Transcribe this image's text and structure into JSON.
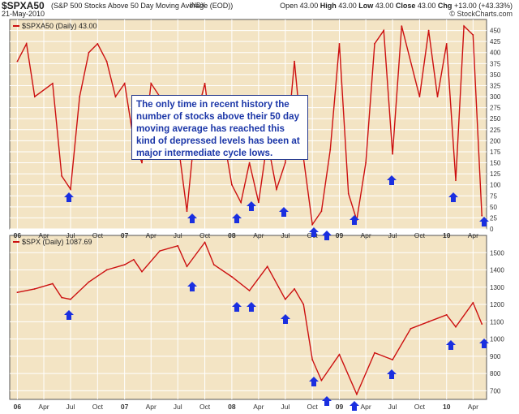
{
  "header": {
    "symbol": "$SPXA50",
    "description": "(S&P 500 Stocks Above 50 Day Moving Average (EOD))",
    "exchange": "INDX",
    "date": "21-May-2010",
    "open_label": "Open",
    "open": "43.00",
    "high_label": "High",
    "high": "43.00",
    "low_label": "Low",
    "low": "43.00",
    "close_label": "Close",
    "close": "43.00",
    "chg_label": "Chg",
    "chg": "+13.00 (+43.33%)",
    "credit": "© StockCharts.com"
  },
  "colors": {
    "plot_bg": "#f3e4c4",
    "line": "#cc1010",
    "arrow": "#1a2fe0",
    "grid": "#ffffff",
    "annotation_text": "#1c37a8"
  },
  "annotation": "The only time in recent history the number of stocks above their 50 day moving average has reached this kind of depressed levels has been at major intermediate cycle lows.",
  "x_axis_labels": [
    "06",
    "Apr",
    "Jul",
    "Oct",
    "07",
    "Apr",
    "Jul",
    "Oct",
    "08",
    "Apr",
    "Jul",
    "Oct",
    "09",
    "Apr",
    "Jul",
    "Oct",
    "10",
    "Apr"
  ],
  "chart_data": [
    {
      "type": "line",
      "legend": "$SPXA50 (Daily) 43.00",
      "ylim": [
        0,
        475
      ],
      "y_ticks": [
        0,
        25,
        50,
        75,
        100,
        125,
        150,
        175,
        200,
        225,
        250,
        275,
        300,
        325,
        350,
        375,
        400,
        425,
        450
      ],
      "grid": true,
      "series": [
        {
          "name": "$SPXA50",
          "x": [
            "2006-01",
            "2006-02",
            "2006-03",
            "2006-05",
            "2006-06",
            "2006-07",
            "2006-08",
            "2006-09",
            "2006-10",
            "2006-11",
            "2006-12",
            "2007-01",
            "2007-02",
            "2007-03",
            "2007-04",
            "2007-05",
            "2007-06",
            "2007-07",
            "2007-08",
            "2007-09",
            "2007-10",
            "2007-11",
            "2007-12",
            "2008-01",
            "2008-02",
            "2008-03",
            "2008-04",
            "2008-05",
            "2008-06",
            "2008-07",
            "2008-08",
            "2008-09",
            "2008-10",
            "2008-11",
            "2008-12",
            "2009-01",
            "2009-02",
            "2009-03",
            "2009-04",
            "2009-05",
            "2009-06",
            "2009-07",
            "2009-08",
            "2009-10",
            "2009-11",
            "2009-12",
            "2010-01",
            "2010-02",
            "2010-03",
            "2010-04",
            "2010-05"
          ],
          "values": [
            380,
            420,
            300,
            330,
            120,
            90,
            300,
            400,
            420,
            380,
            300,
            330,
            200,
            150,
            330,
            300,
            200,
            200,
            40,
            250,
            330,
            170,
            220,
            100,
            60,
            150,
            60,
            200,
            90,
            150,
            380,
            160,
            10,
            40,
            180,
            420,
            80,
            20,
            150,
            420,
            450,
            170,
            460,
            300,
            450,
            300,
            420,
            110,
            460,
            440,
            30
          ]
        }
      ]
    },
    {
      "type": "line",
      "legend": "$SPX (Daily) 1087.69",
      "ylim": [
        650,
        1600
      ],
      "y_ticks": [
        700,
        800,
        900,
        1000,
        1100,
        1200,
        1300,
        1400,
        1500
      ],
      "grid": true,
      "series": [
        {
          "name": "$SPX",
          "x": [
            "2006-01",
            "2006-03",
            "2006-05",
            "2006-06",
            "2006-07",
            "2006-09",
            "2006-11",
            "2007-01",
            "2007-02",
            "2007-03",
            "2007-05",
            "2007-07",
            "2007-08",
            "2007-10",
            "2007-11",
            "2008-01",
            "2008-03",
            "2008-05",
            "2008-07",
            "2008-08",
            "2008-09",
            "2008-10",
            "2008-11",
            "2009-01",
            "2009-03",
            "2009-05",
            "2009-07",
            "2009-09",
            "2009-11",
            "2010-01",
            "2010-02",
            "2010-04",
            "2010-05"
          ],
          "values": [
            1270,
            1290,
            1320,
            1240,
            1230,
            1330,
            1400,
            1430,
            1460,
            1390,
            1510,
            1540,
            1420,
            1560,
            1430,
            1360,
            1280,
            1420,
            1230,
            1290,
            1200,
            880,
            760,
            910,
            680,
            920,
            880,
            1060,
            1100,
            1140,
            1070,
            1210,
            1087
          ]
        }
      ]
    }
  ]
}
